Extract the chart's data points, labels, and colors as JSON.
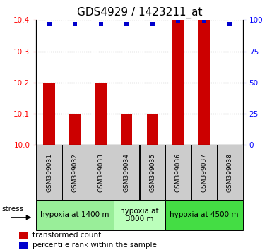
{
  "title": "GDS4929 / 1423211_at",
  "samples": [
    "GSM399031",
    "GSM399032",
    "GSM399033",
    "GSM399034",
    "GSM399035",
    "GSM399036",
    "GSM399037",
    "GSM399038"
  ],
  "bar_values": [
    10.2,
    10.1,
    10.2,
    10.1,
    10.1,
    10.4,
    10.4,
    10.0
  ],
  "bar_base": 10.0,
  "percentile_values": [
    97,
    97,
    97,
    97,
    97,
    99,
    99,
    97
  ],
  "ylim_left": [
    10.0,
    10.4
  ],
  "ylim_right": [
    0,
    100
  ],
  "yticks_left": [
    10.0,
    10.1,
    10.2,
    10.3,
    10.4
  ],
  "yticks_right": [
    0,
    25,
    50,
    75,
    100
  ],
  "bar_color": "#cc0000",
  "percentile_color": "#0000cc",
  "groups": [
    {
      "label": "hypoxia at 1400 m",
      "indices": [
        0,
        1,
        2
      ],
      "color": "#99ee99"
    },
    {
      "label": "hypoxia at\n3000 m",
      "indices": [
        3,
        4
      ],
      "color": "#bbffbb"
    },
    {
      "label": "hypoxia at 4500 m",
      "indices": [
        5,
        6,
        7
      ],
      "color": "#44dd44"
    }
  ],
  "stress_label": "stress",
  "legend_bar_label": "transformed count",
  "legend_percentile_label": "percentile rank within the sample",
  "bar_width": 0.45,
  "title_fontsize": 11,
  "tick_fontsize": 7.5,
  "sample_fontsize": 6.5,
  "group_fontsize": 7.5,
  "legend_fontsize": 7.5
}
